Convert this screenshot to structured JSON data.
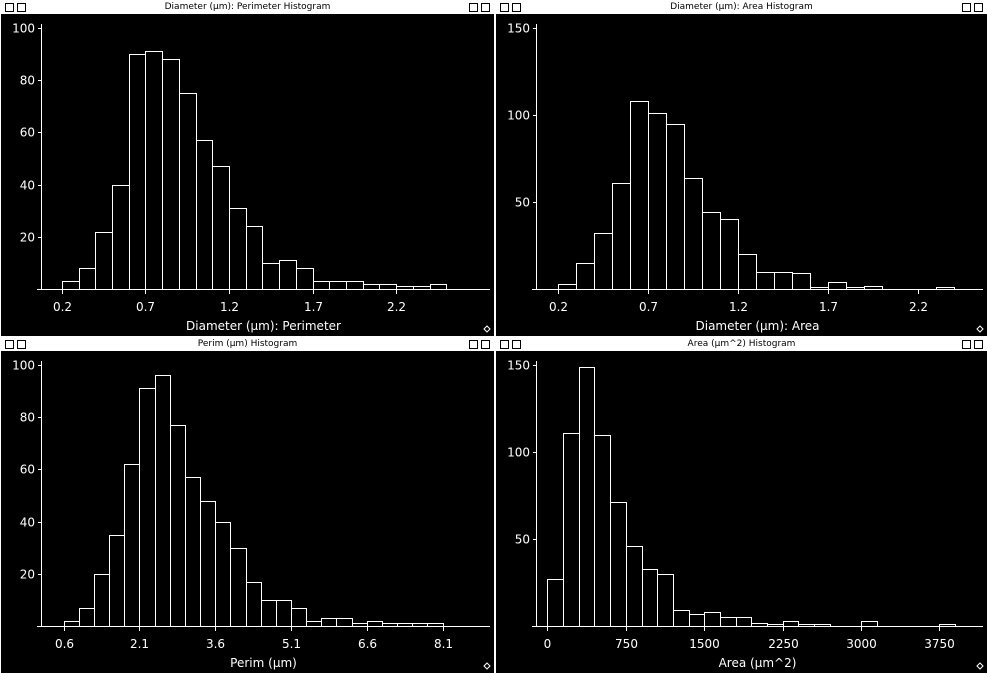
{
  "windows": [
    {
      "title": "Diameter (µm): Perimeter Histogram",
      "chart": {
        "type": "bar",
        "xlabel": "Diameter (µm): Perimeter",
        "x_ticks": [
          "0.2",
          "0.7",
          "1.2",
          "1.7",
          "2.2"
        ],
        "y_ticks": [
          "100",
          "80",
          "60",
          "40",
          "20"
        ],
        "ylim": [
          0,
          100
        ],
        "xlim": [
          0.075,
          2.75
        ],
        "bin_start": 0.2,
        "bin_width": 0.1,
        "values": [
          3,
          8,
          22,
          40,
          90,
          91,
          88,
          75,
          57,
          47,
          31,
          24,
          10,
          11,
          8,
          3,
          3,
          3,
          2,
          2,
          1,
          1,
          2,
          0
        ]
      }
    },
    {
      "title": "Diameter (µm): Area Histogram",
      "chart": {
        "type": "bar",
        "xlabel": "Diameter (µm): Area",
        "x_ticks": [
          "0.2",
          "0.7",
          "1.2",
          "1.7",
          "2.2"
        ],
        "y_ticks": [
          "150",
          "100",
          "50"
        ],
        "ylim": [
          0,
          150
        ],
        "xlim": [
          0.075,
          2.55
        ],
        "bin_start": 0.2,
        "bin_width": 0.1,
        "values": [
          3,
          15,
          32,
          61,
          108,
          101,
          95,
          64,
          44,
          40,
          20,
          10,
          10,
          9,
          1,
          4,
          1,
          2,
          0,
          0,
          0,
          1
        ]
      }
    },
    {
      "title": "Perim (µm) Histogram",
      "chart": {
        "type": "bar",
        "xlabel": "Perim (µm)",
        "x_ticks": [
          "0.6",
          "2.1",
          "3.6",
          "5.1",
          "6.6",
          "8.1"
        ],
        "y_ticks": [
          "100",
          "80",
          "60",
          "40",
          "20"
        ],
        "ylim": [
          0,
          100
        ],
        "xlim": [
          0.15,
          9.0
        ],
        "bin_start": 0.6,
        "bin_width": 0.3,
        "values": [
          2,
          7,
          20,
          35,
          62,
          91,
          96,
          77,
          57,
          48,
          40,
          30,
          17,
          10,
          10,
          7,
          2,
          3,
          3,
          1,
          2,
          1,
          1,
          1,
          1
        ]
      }
    },
    {
      "title": "Area (µm^2) Histogram",
      "chart": {
        "type": "bar",
        "xlabel": "Area (µm^2)",
        "x_ticks": [
          "0",
          "750",
          "1500",
          "2250",
          "3000",
          "3750"
        ],
        "y_ticks": [
          "150",
          "100",
          "50"
        ],
        "ylim": [
          0,
          150
        ],
        "xlim": [
          -110,
          4150
        ],
        "bin_start": 0,
        "bin_width": 150,
        "values": [
          27,
          111,
          149,
          110,
          71,
          46,
          33,
          30,
          9,
          7,
          8,
          5,
          5,
          2,
          1,
          3,
          1,
          1,
          0,
          0,
          3,
          0,
          0,
          0,
          0,
          1
        ]
      }
    }
  ]
}
